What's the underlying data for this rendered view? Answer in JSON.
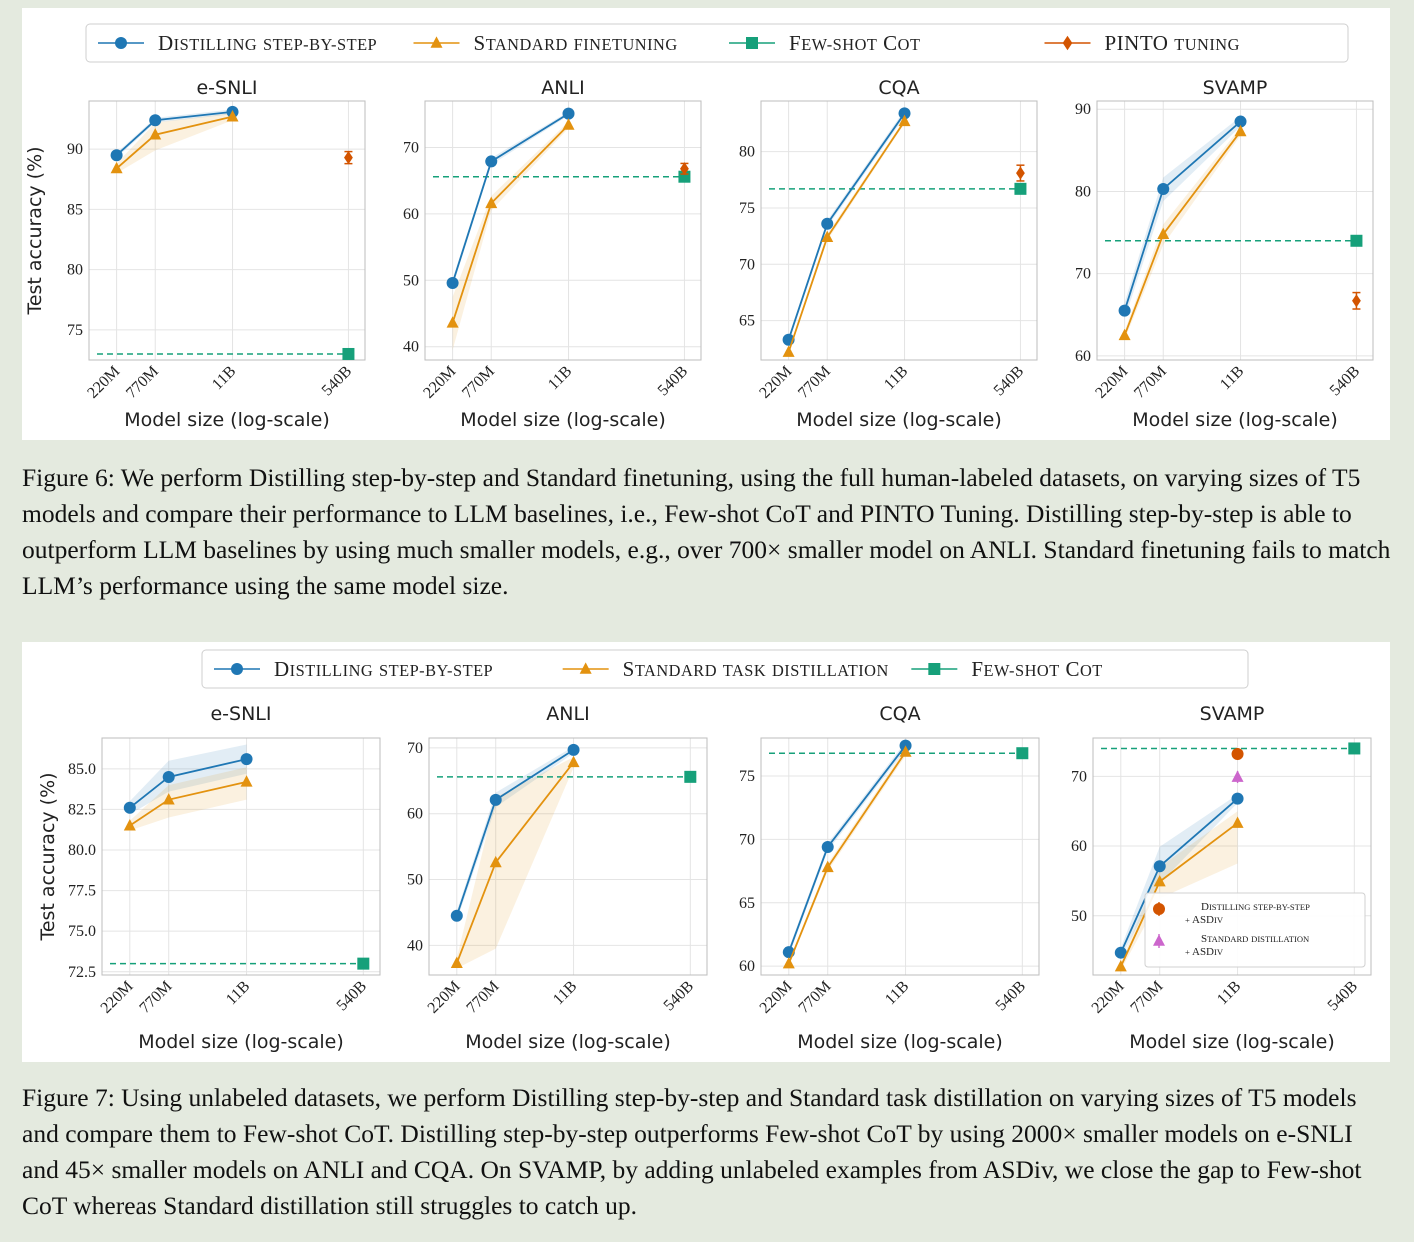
{
  "colors": {
    "distill": "#1f77b4",
    "standard": "#e3920f",
    "fewshot": "#16a07a",
    "pinto": "#d35400",
    "asdiv_std": "#cc66cc"
  },
  "figures": [
    {
      "id": "fig6",
      "legend": [
        {
          "label": "Distilling step-by-step",
          "kind": "distill",
          "marker": "circle"
        },
        {
          "label": "Standard finetuning",
          "kind": "standard",
          "marker": "triangle"
        },
        {
          "label": "Few-shot CoT",
          "kind": "fewshot",
          "marker": "square"
        },
        {
          "label": "PINTO tuning",
          "kind": "pinto",
          "marker": "diamond"
        }
      ],
      "caption": "Figure 6: We perform Distilling step-by-step and Standard finetuning, using the full human-labeled datasets, on varying sizes of T5 models and compare their performance to LLM baselines, i.e., Few-shot CoT and PINTO Tuning. Distilling step-by-step is able to outperform LLM baselines by using much smaller models, e.g., over 700× smaller model on ANLI. Standard finetuning fails to match LLM’s performance using the same model size."
    },
    {
      "id": "fig7",
      "legend": [
        {
          "label": "Distilling step-by-step",
          "kind": "distill",
          "marker": "circle"
        },
        {
          "label": "Standard task distillation",
          "kind": "standard",
          "marker": "triangle"
        },
        {
          "label": "Few-shot CoT",
          "kind": "fewshot",
          "marker": "square"
        }
      ],
      "caption": "Figure 7: Using unlabeled datasets, we perform Distilling step-by-step and Standard task distillation on varying sizes of T5 models and compare them to Few-shot CoT. Distilling step-by-step outperforms Few-shot CoT by using 2000× smaller models on e-SNLI and 45× smaller models on ANLI and CQA. On SVAMP, by adding unlabeled examples from ASDiv, we close the gap to Few-shot CoT whereas Standard distillation still struggles to catch up."
    }
  ],
  "chart_data": [
    {
      "figure": "fig6",
      "type": "line",
      "title": "e-SNLI",
      "xlabel": "Model size (log-scale)",
      "ylabel": "Test accuracy (%)",
      "x_categories": [
        "220M",
        "770M",
        "11B",
        "540B"
      ],
      "ylim": [
        72.5,
        94
      ],
      "yticks": [
        75,
        80,
        85,
        90
      ],
      "ytick_labels": [
        "75",
        "80",
        "85",
        "90"
      ],
      "grid": true,
      "series": [
        {
          "name": "Distilling step-by-step",
          "kind": "distill",
          "x": [
            "220M",
            "770M",
            "11B"
          ],
          "y": [
            89.5,
            92.4,
            93.1
          ],
          "band": [
            [
              89.3,
              89.7
            ],
            [
              92.2,
              92.6
            ],
            [
              92.9,
              93.3
            ]
          ]
        },
        {
          "name": "Standard finetuning",
          "kind": "standard",
          "x": [
            "220M",
            "770M",
            "11B"
          ],
          "y": [
            88.4,
            91.2,
            92.7
          ],
          "band": [
            [
              88.0,
              88.8
            ],
            [
              89.9,
              92.2
            ],
            [
              92.4,
              93.0
            ]
          ]
        }
      ],
      "fewshot": 73.0,
      "pinto": 89.3,
      "pinto_err": 0.5
    },
    {
      "figure": "fig6",
      "type": "line",
      "title": "ANLI",
      "xlabel": "Model size (log-scale)",
      "ylabel": "",
      "x_categories": [
        "220M",
        "770M",
        "11B",
        "540B"
      ],
      "ylim": [
        38,
        77
      ],
      "yticks": [
        40,
        50,
        60,
        70
      ],
      "ytick_labels": [
        "40",
        "50",
        "60",
        "70"
      ],
      "grid": true,
      "series": [
        {
          "name": "Distilling step-by-step",
          "kind": "distill",
          "x": [
            "220M",
            "770M",
            "11B"
          ],
          "y": [
            49.6,
            67.9,
            75.1
          ],
          "band": [
            [
              49.0,
              50.2
            ],
            [
              67.4,
              68.4
            ],
            [
              74.8,
              75.4
            ]
          ]
        },
        {
          "name": "Standard finetuning",
          "kind": "standard",
          "x": [
            "220M",
            "770M",
            "11B"
          ],
          "y": [
            43.6,
            61.6,
            73.4
          ],
          "band": [
            [
              39.5,
              47.5
            ],
            [
              60.5,
              62.7
            ],
            [
              72.9,
              73.9
            ]
          ]
        }
      ],
      "fewshot": 65.6,
      "pinto": 66.8,
      "pinto_err": 0.8
    },
    {
      "figure": "fig6",
      "type": "line",
      "title": "CQA",
      "xlabel": "Model size (log-scale)",
      "ylabel": "",
      "x_categories": [
        "220M",
        "770M",
        "11B",
        "540B"
      ],
      "ylim": [
        61.5,
        84.5
      ],
      "yticks": [
        65,
        70,
        75,
        80
      ],
      "ytick_labels": [
        "65",
        "70",
        "75",
        "80"
      ],
      "grid": true,
      "series": [
        {
          "name": "Distilling step-by-step",
          "kind": "distill",
          "x": [
            "220M",
            "770M",
            "11B"
          ],
          "y": [
            63.3,
            73.6,
            83.4
          ],
          "band": [
            [
              63.0,
              63.6
            ],
            [
              73.3,
              73.9
            ],
            [
              83.1,
              83.7
            ]
          ]
        },
        {
          "name": "Standard finetuning",
          "kind": "standard",
          "x": [
            "220M",
            "770M",
            "11B"
          ],
          "y": [
            62.2,
            72.4,
            82.7
          ],
          "band": [
            [
              62.0,
              62.4
            ],
            [
              72.1,
              72.7
            ],
            [
              82.5,
              82.9
            ]
          ]
        }
      ],
      "fewshot": 76.7,
      "pinto": 78.1,
      "pinto_err": 0.7
    },
    {
      "figure": "fig6",
      "type": "line",
      "title": "SVAMP",
      "xlabel": "Model size (log-scale)",
      "ylabel": "",
      "x_categories": [
        "220M",
        "770M",
        "11B",
        "540B"
      ],
      "ylim": [
        59.5,
        91
      ],
      "yticks": [
        60,
        70,
        80,
        90
      ],
      "ytick_labels": [
        "60",
        "70",
        "80",
        "90"
      ],
      "grid": true,
      "series": [
        {
          "name": "Distilling step-by-step",
          "kind": "distill",
          "x": [
            "220M",
            "770M",
            "11B"
          ],
          "y": [
            65.5,
            80.3,
            88.5
          ],
          "band": [
            [
              64.5,
              66.5
            ],
            [
              78.8,
              81.7
            ],
            [
              87.9,
              89.1
            ]
          ]
        },
        {
          "name": "Standard finetuning",
          "kind": "standard",
          "x": [
            "220M",
            "770M",
            "11B"
          ],
          "y": [
            62.5,
            74.8,
            87.3
          ],
          "band": [
            [
              62.0,
              63.0
            ],
            [
              73.5,
              76.0
            ],
            [
              86.8,
              87.8
            ]
          ]
        }
      ],
      "fewshot": 74.0,
      "pinto": 66.7,
      "pinto_err": 1.0
    },
    {
      "figure": "fig7",
      "type": "line",
      "title": "e-SNLI",
      "xlabel": "Model size (log-scale)",
      "ylabel": "Test accuracy (%)",
      "x_categories": [
        "220M",
        "770M",
        "11B",
        "540B"
      ],
      "ylim": [
        72.3,
        86.9
      ],
      "yticks": [
        72.5,
        75.0,
        77.5,
        80.0,
        82.5,
        85.0
      ],
      "ytick_labels": [
        "72.5",
        "75.0",
        "77.5",
        "80.0",
        "82.5",
        "85.0"
      ],
      "grid": true,
      "series": [
        {
          "name": "Distilling step-by-step",
          "kind": "distill",
          "x": [
            "220M",
            "770M",
            "11B"
          ],
          "y": [
            82.6,
            84.5,
            85.6
          ],
          "band": [
            [
              82.2,
              83.0
            ],
            [
              83.6,
              85.5
            ],
            [
              84.7,
              86.5
            ]
          ]
        },
        {
          "name": "Standard task distillation",
          "kind": "standard",
          "x": [
            "220M",
            "770M",
            "11B"
          ],
          "y": [
            81.5,
            83.1,
            84.2
          ],
          "band": [
            [
              81.2,
              81.8
            ],
            [
              82.0,
              84.0
            ],
            [
              83.1,
              85.1
            ]
          ]
        }
      ],
      "fewshot": 73.0
    },
    {
      "figure": "fig7",
      "type": "line",
      "title": "ANLI",
      "xlabel": "Model size (log-scale)",
      "ylabel": "",
      "x_categories": [
        "220M",
        "770M",
        "11B",
        "540B"
      ],
      "ylim": [
        35.5,
        71.5
      ],
      "yticks": [
        40,
        50,
        60,
        70
      ],
      "ytick_labels": [
        "40",
        "50",
        "60",
        "70"
      ],
      "grid": true,
      "series": [
        {
          "name": "Distilling step-by-step",
          "kind": "distill",
          "x": [
            "220M",
            "770M",
            "11B"
          ],
          "y": [
            44.5,
            62.1,
            69.7
          ],
          "band": [
            [
              43.8,
              45.2
            ],
            [
              61.0,
              63.2
            ],
            [
              69.2,
              70.2
            ]
          ]
        },
        {
          "name": "Standard task distillation",
          "kind": "standard",
          "x": [
            "220M",
            "770M",
            "11B"
          ],
          "y": [
            37.3,
            52.6,
            67.8
          ],
          "band": [
            [
              36.5,
              38.1
            ],
            [
              39.5,
              62.5
            ],
            [
              67.0,
              68.6
            ]
          ]
        }
      ],
      "fewshot": 65.6
    },
    {
      "figure": "fig7",
      "type": "line",
      "title": "CQA",
      "xlabel": "Model size (log-scale)",
      "ylabel": "",
      "x_categories": [
        "220M",
        "770M",
        "11B",
        "540B"
      ],
      "ylim": [
        59.3,
        78.0
      ],
      "yticks": [
        60,
        65,
        70,
        75
      ],
      "ytick_labels": [
        "60",
        "65",
        "70",
        "75"
      ],
      "grid": true,
      "series": [
        {
          "name": "Distilling step-by-step",
          "kind": "distill",
          "x": [
            "220M",
            "770M",
            "11B"
          ],
          "y": [
            61.1,
            69.4,
            77.4
          ],
          "band": [
            [
              60.8,
              61.4
            ],
            [
              69.1,
              69.7
            ],
            [
              77.1,
              77.7
            ]
          ]
        },
        {
          "name": "Standard task distillation",
          "kind": "standard",
          "x": [
            "220M",
            "770M",
            "11B"
          ],
          "y": [
            60.2,
            67.8,
            76.9
          ],
          "band": [
            [
              60.0,
              60.4
            ],
            [
              67.5,
              68.1
            ],
            [
              76.6,
              77.2
            ]
          ]
        }
      ],
      "fewshot": 76.8
    },
    {
      "figure": "fig7",
      "type": "line",
      "title": "SVAMP",
      "xlabel": "Model size (log-scale)",
      "ylabel": "",
      "x_categories": [
        "220M",
        "770M",
        "11B",
        "540B"
      ],
      "ylim": [
        41.5,
        75.5
      ],
      "yticks": [
        50,
        60,
        70
      ],
      "ytick_labels": [
        "50",
        "60",
        "70"
      ],
      "grid": true,
      "series": [
        {
          "name": "Distilling step-by-step",
          "kind": "distill",
          "x": [
            "220M",
            "770M",
            "11B"
          ],
          "y": [
            44.7,
            57.1,
            66.8
          ],
          "band": [
            [
              44.0,
              45.4
            ],
            [
              54.6,
              59.9
            ],
            [
              66.2,
              67.4
            ]
          ]
        },
        {
          "name": "Standard task distillation",
          "kind": "standard",
          "x": [
            "220M",
            "770M",
            "11B"
          ],
          "y": [
            42.7,
            54.9,
            63.3
          ],
          "band": [
            [
              42.2,
              43.2
            ],
            [
              52.5,
              57.0
            ],
            [
              57.5,
              65.0
            ]
          ]
        }
      ],
      "fewshot": 74.0,
      "extra_points": [
        {
          "name": "Distilling step-by-step + ASDiv",
          "kind": "pinto",
          "marker": "circle",
          "x": "11B",
          "y": 73.2
        },
        {
          "name": "Standard distillation + ASDiv",
          "kind": "asdiv_std",
          "marker": "triangle",
          "x": "11B",
          "y": 69.9
        }
      ],
      "inner_legend": [
        {
          "line1": "Distilling step-by-step",
          "line2": "+ ASDiv",
          "kind": "pinto",
          "marker": "circle"
        },
        {
          "line1": "Standard distillation",
          "line2": "+ ASDiv",
          "kind": "asdiv_std",
          "marker": "triangle"
        }
      ],
      "inner_legend_position": "lower-right"
    }
  ]
}
